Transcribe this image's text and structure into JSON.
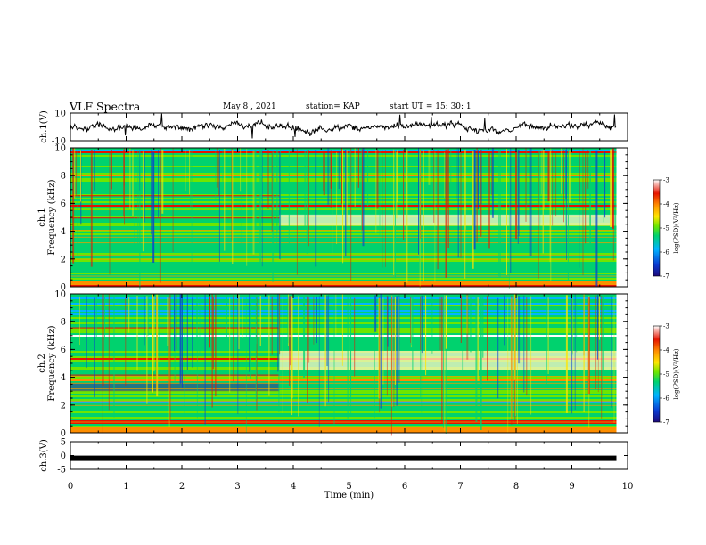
{
  "header": {
    "title": "VLF Spectra",
    "date": "May 8 , 2021",
    "station": "station= KAP",
    "start": "start UT = 15: 30: 1"
  },
  "colors": {
    "spectrum": [
      "#1e0a7a",
      "#0a3cd2",
      "#00b4ff",
      "#00d26e",
      "#6ee600",
      "#ffe600",
      "#ff8c00",
      "#e61400",
      "#ffffff"
    ]
  },
  "chart_data": [
    {
      "type": "line",
      "panel": "ch1-waveform",
      "ylabel": "ch.1(V)",
      "ylim": [
        -10,
        10
      ],
      "yticks": [
        "10",
        "-10"
      ],
      "xlim": [
        0,
        10
      ],
      "description_values": "noisy waveform oscillating roughly between -5 and 5 V"
    },
    {
      "type": "heatmap",
      "panel": "ch1-spectrogram",
      "ylabel": "ch.1 Frequency (kHz)",
      "ylim": [
        0,
        10
      ],
      "yticks": [
        "0",
        "2",
        "4",
        "6",
        "8",
        "10"
      ],
      "xlim": [
        0,
        10
      ],
      "data_extent_min": 9.8,
      "colorbar": {
        "label": "log(PSD)(V²/Hz)",
        "ticks": [
          "-3",
          "-4",
          "-5",
          "-6",
          "-7"
        ],
        "range": [
          -7,
          -3
        ]
      }
    },
    {
      "type": "heatmap",
      "panel": "ch2-spectrogram",
      "ylabel": "ch.2 Frequency (kHz)",
      "ylim": [
        0,
        10
      ],
      "yticks": [
        "0",
        "2",
        "4",
        "6",
        "8",
        "10"
      ],
      "xlim": [
        0,
        10
      ],
      "data_extent_min": 9.8,
      "colorbar": {
        "label": "log(PSD)(V²/Hz)",
        "ticks": [
          "-3",
          "-4",
          "-5",
          "-6",
          "-7"
        ],
        "range": [
          -7,
          -3
        ]
      }
    },
    {
      "type": "line",
      "panel": "ch3-waveform",
      "ylabel": "ch.3(V)",
      "ylim": [
        -5,
        5
      ],
      "yticks": [
        "5",
        "0",
        "-5"
      ],
      "xlim": [
        0,
        10
      ],
      "values_constant": -1
    }
  ],
  "xaxis": {
    "label": "Time (min)",
    "ticks": [
      "0",
      "1",
      "2",
      "3",
      "4",
      "5",
      "6",
      "7",
      "8",
      "9",
      "10"
    ]
  }
}
